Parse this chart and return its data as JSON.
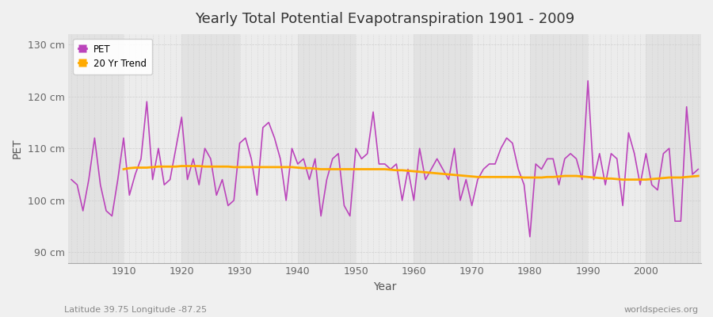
{
  "title": "Yearly Total Potential Evapotranspiration 1901 - 2009",
  "xlabel": "Year",
  "ylabel": "PET",
  "subtitle_left": "Latitude 39.75 Longitude -87.25",
  "subtitle_right": "worldspecies.org",
  "ylim": [
    88,
    132
  ],
  "yticks": [
    90,
    100,
    110,
    120,
    130
  ],
  "ytick_labels": [
    "90 cm",
    "100 cm",
    "110 cm",
    "120 cm",
    "130 cm"
  ],
  "bg_outer": "#f0f0f0",
  "bg_plot_light": "#ececec",
  "bg_plot_dark": "#e2e2e2",
  "grid_color": "#ffffff",
  "pet_color": "#bb44bb",
  "trend_color": "#ffaa00",
  "years": [
    1901,
    1902,
    1903,
    1904,
    1905,
    1906,
    1907,
    1908,
    1909,
    1910,
    1911,
    1912,
    1913,
    1914,
    1915,
    1916,
    1917,
    1918,
    1919,
    1920,
    1921,
    1922,
    1923,
    1924,
    1925,
    1926,
    1927,
    1928,
    1929,
    1930,
    1931,
    1932,
    1933,
    1934,
    1935,
    1936,
    1937,
    1938,
    1939,
    1940,
    1941,
    1942,
    1943,
    1944,
    1945,
    1946,
    1947,
    1948,
    1949,
    1950,
    1951,
    1952,
    1953,
    1954,
    1955,
    1956,
    1957,
    1958,
    1959,
    1960,
    1961,
    1962,
    1963,
    1964,
    1965,
    1966,
    1967,
    1968,
    1969,
    1970,
    1971,
    1972,
    1973,
    1974,
    1975,
    1976,
    1977,
    1978,
    1979,
    1980,
    1981,
    1982,
    1983,
    1984,
    1985,
    1986,
    1987,
    1988,
    1989,
    1990,
    1991,
    1992,
    1993,
    1994,
    1995,
    1996,
    1997,
    1998,
    1999,
    2000,
    2001,
    2002,
    2003,
    2004,
    2005,
    2006,
    2007,
    2008,
    2009
  ],
  "pet_values": [
    104,
    103,
    98,
    104,
    112,
    103,
    98,
    97,
    104,
    112,
    101,
    105,
    108,
    119,
    104,
    110,
    103,
    104,
    110,
    116,
    104,
    108,
    103,
    110,
    108,
    101,
    104,
    99,
    100,
    111,
    112,
    108,
    101,
    114,
    115,
    112,
    108,
    100,
    110,
    107,
    108,
    104,
    108,
    97,
    104,
    108,
    109,
    99,
    97,
    110,
    108,
    109,
    117,
    107,
    107,
    106,
    107,
    100,
    106,
    100,
    110,
    104,
    106,
    108,
    106,
    104,
    110,
    100,
    104,
    99,
    104,
    106,
    107,
    107,
    110,
    112,
    111,
    106,
    103,
    93,
    107,
    106,
    108,
    108,
    103,
    108,
    109,
    108,
    104,
    123,
    104,
    109,
    103,
    109,
    108,
    99,
    113,
    109,
    103,
    109,
    103,
    102,
    109,
    110,
    96,
    96,
    118,
    105,
    106
  ],
  "trend_values": [
    null,
    null,
    null,
    null,
    null,
    null,
    null,
    null,
    null,
    106.0,
    106.2,
    106.3,
    106.3,
    106.3,
    106.4,
    106.5,
    106.5,
    106.5,
    106.5,
    106.6,
    106.6,
    106.6,
    106.6,
    106.5,
    106.5,
    106.5,
    106.5,
    106.5,
    106.4,
    106.4,
    106.4,
    106.4,
    106.4,
    106.4,
    106.4,
    106.4,
    106.4,
    106.4,
    106.4,
    106.3,
    106.2,
    106.2,
    106.1,
    106.0,
    106.0,
    106.0,
    106.0,
    106.0,
    106.0,
    106.0,
    106.0,
    106.0,
    106.0,
    106.0,
    106.0,
    105.9,
    105.8,
    105.8,
    105.7,
    105.6,
    105.5,
    105.4,
    105.3,
    105.2,
    105.1,
    105.0,
    104.9,
    104.8,
    104.7,
    104.6,
    104.5,
    104.5,
    104.5,
    104.5,
    104.5,
    104.5,
    104.5,
    104.5,
    104.4,
    104.4,
    104.4,
    104.4,
    104.5,
    104.5,
    104.6,
    104.7,
    104.7,
    104.7,
    104.6,
    104.5,
    104.4,
    104.3,
    104.2,
    104.2,
    104.1,
    104.0,
    104.0,
    104.0,
    104.0,
    104.0,
    104.1,
    104.2,
    104.3,
    104.4,
    104.4,
    104.4,
    104.5,
    104.6,
    104.7
  ]
}
